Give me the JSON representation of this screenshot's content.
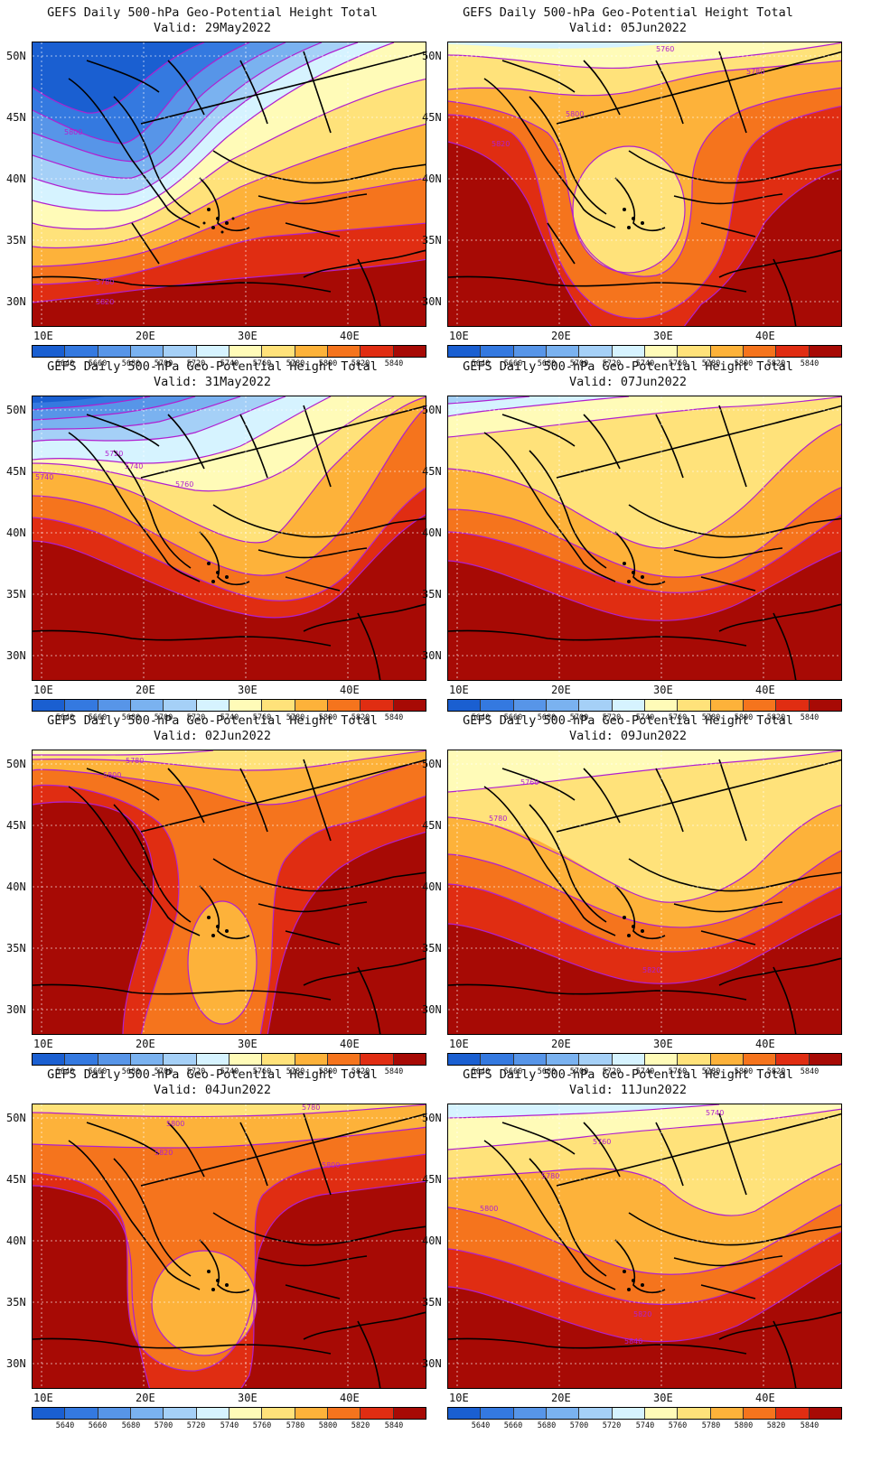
{
  "figure_title": "GEFS Daily 500-hPa Geo-Potential Height Total",
  "axes": {
    "lat_labels": [
      "50N",
      "45N",
      "40N",
      "35N",
      "30N"
    ],
    "lon_labels": [
      "10E",
      "20E",
      "30E",
      "40E"
    ]
  },
  "colorbar": {
    "levels": [
      "5640",
      "5660",
      "5680",
      "5700",
      "5720",
      "5740",
      "5760",
      "5780",
      "5800",
      "5820",
      "5840"
    ],
    "colors": [
      "#1a5fd1",
      "#3479e0",
      "#5795e8",
      "#7ab2f0",
      "#a5d0f7",
      "#d6f3ff",
      "#fffbb8",
      "#ffe27a",
      "#fdb23a",
      "#f5741d",
      "#e02d12",
      "#a70a05"
    ]
  },
  "contour_line_color": "#b01fd0",
  "panels": [
    {
      "title": "GEFS Daily 500-hPa Geo-Potential Height Total",
      "valid": "Valid: 29May2022",
      "contour_labels": [
        "5780",
        "5800",
        "5820"
      ]
    },
    {
      "title": "GEFS Daily 500-hPa Geo-Potential Height Total",
      "valid": "Valid: 05Jun2022",
      "contour_labels": [
        "5760",
        "5780",
        "5800",
        "5820"
      ]
    },
    {
      "title": "GEFS Daily 500-hPa Geo-Potential Height Total",
      "valid": "Valid: 31May2022",
      "contour_labels": [
        "5720",
        "5740",
        "5760"
      ]
    },
    {
      "title": "GEFS Daily 500-hPa Geo-Potential Height Total",
      "valid": "Valid: 07Jun2022",
      "contour_labels": []
    },
    {
      "title": "GEFS Daily 500-hPa Geo-Potential Height Total",
      "valid": "Valid: 02Jun2022",
      "contour_labels": [
        "5780",
        "5800"
      ]
    },
    {
      "title": "GEFS Daily 500-hPa Geo-Potential Height Total",
      "valid": "Valid: 09Jun2022",
      "contour_labels": [
        "5760",
        "5780",
        "5820"
      ]
    },
    {
      "title": "GEFS Daily 500-hPa Geo-Potential Height Total",
      "valid": "Valid: 04Jun2022",
      "contour_labels": [
        "5780",
        "5800",
        "5820",
        "5800"
      ]
    },
    {
      "title": "GEFS Daily 500-hPa Geo-Potential Height Total",
      "valid": "Valid: 11Jun2022",
      "contour_labels": [
        "5740",
        "5760",
        "5780",
        "5800",
        "5820",
        "5840"
      ]
    }
  ]
}
